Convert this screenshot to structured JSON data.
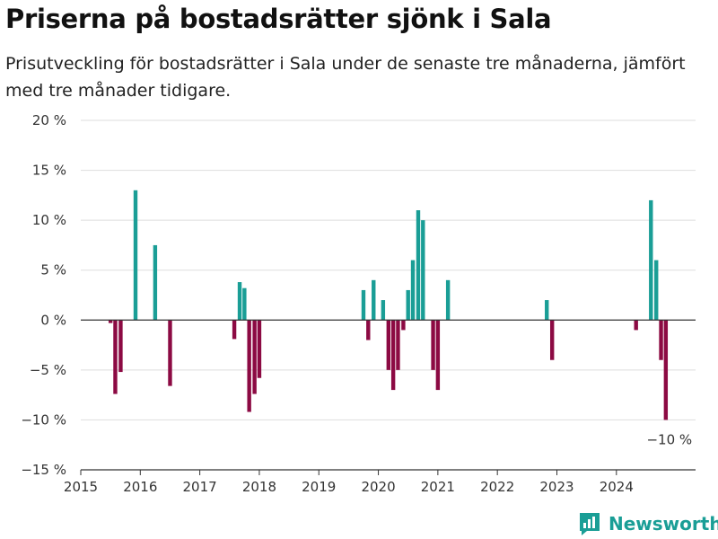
{
  "chart_data": {
    "type": "bar",
    "title": "Priserna på bostadsrätter sjönk i Sala",
    "subtitle": "Prisutveckling för bostadsrätter i Sala under de senaste tre månaderna, jämfört med tre månader tidigare.",
    "xlabel": "",
    "ylabel": "",
    "ylim": [
      -15,
      20
    ],
    "yticks": [
      20,
      15,
      10,
      5,
      0,
      -5,
      -10,
      -15
    ],
    "ytick_labels": [
      "20 %",
      "15 %",
      "10 %",
      "5 %",
      "0 %",
      "−5 %",
      "−10 %",
      "−15 %"
    ],
    "xticks": [
      2015,
      2016,
      2017,
      2018,
      2019,
      2020,
      2021,
      2022,
      2023,
      2024
    ],
    "xtick_labels": [
      "2015",
      "2016",
      "2017",
      "2018",
      "2019",
      "2020",
      "2021",
      "2022",
      "2023",
      "2024"
    ],
    "grid": true,
    "colors": {
      "positive": "#1a9e96",
      "negative": "#8c0a43",
      "zero_line": "#333333",
      "grid": "#dddddd"
    },
    "annotation": {
      "text": "−10 %",
      "x": 2024.92,
      "y": -10
    },
    "x": [
      2015.5,
      2015.58,
      2015.67,
      2015.92,
      2016.25,
      2016.5,
      2017.58,
      2017.67,
      2017.75,
      2017.83,
      2017.92,
      2018.0,
      2019.75,
      2019.83,
      2019.92,
      2020.08,
      2020.17,
      2020.25,
      2020.33,
      2020.42,
      2020.5,
      2020.58,
      2020.67,
      2020.75,
      2020.92,
      2021.0,
      2021.17,
      2022.83,
      2022.92,
      2024.33,
      2024.58,
      2024.67,
      2024.75,
      2024.83
    ],
    "values": [
      -0.3,
      -7.4,
      -5.2,
      13.0,
      7.5,
      -6.6,
      -1.9,
      3.8,
      3.2,
      -9.2,
      -7.4,
      -5.8,
      3.0,
      -2.0,
      4.0,
      2.0,
      -5.0,
      -7.0,
      -5.0,
      -1.0,
      3.0,
      6.0,
      11.0,
      10.0,
      -5.0,
      -7.0,
      4.0,
      2.0,
      -4.0,
      -1.0,
      12.0,
      6.0,
      -4.0,
      -10.0
    ]
  },
  "brand": {
    "name": "Newsworthy",
    "color": "#1a9e96"
  }
}
